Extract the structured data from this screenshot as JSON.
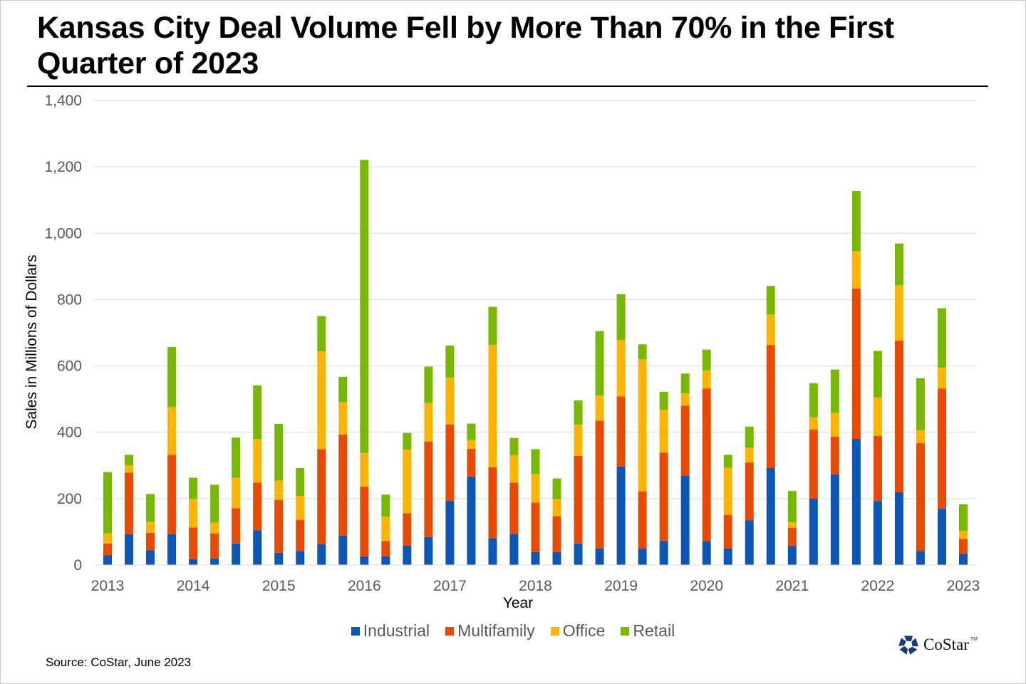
{
  "chart_data": {
    "type": "bar",
    "stacked": true,
    "title": "Kansas City Deal Volume Fell by More Than 70% in the First Quarter of 2023",
    "xlabel": "Year",
    "ylabel": "Sales in Millions of Dollars",
    "ylim": [
      0,
      1400
    ],
    "yticks": [
      0,
      200,
      400,
      600,
      800,
      1000,
      1200,
      1400
    ],
    "ytick_labels": [
      "0",
      "200",
      "400",
      "600",
      "800",
      "1,000",
      "1,200",
      "1,400"
    ],
    "grid": true,
    "legend_position": "bottom",
    "x_tick_labels": [
      {
        "index": 0,
        "label": "2013"
      },
      {
        "index": 4,
        "label": "2014"
      },
      {
        "index": 8,
        "label": "2015"
      },
      {
        "index": 12,
        "label": "2016"
      },
      {
        "index": 16,
        "label": "2017"
      },
      {
        "index": 20,
        "label": "2018"
      },
      {
        "index": 24,
        "label": "2019"
      },
      {
        "index": 28,
        "label": "2020"
      },
      {
        "index": 32,
        "label": "2021"
      },
      {
        "index": 36,
        "label": "2022"
      },
      {
        "index": 40,
        "label": "2023"
      }
    ],
    "categories": [
      "2013 Q1",
      "2013 Q2",
      "2013 Q3",
      "2013 Q4",
      "2014 Q1",
      "2014 Q2",
      "2014 Q3",
      "2014 Q4",
      "2015 Q1",
      "2015 Q2",
      "2015 Q3",
      "2015 Q4",
      "2016 Q1",
      "2016 Q2",
      "2016 Q3",
      "2016 Q4",
      "2017 Q1",
      "2017 Q2",
      "2017 Q3",
      "2017 Q4",
      "2018 Q1",
      "2018 Q2",
      "2018 Q3",
      "2018 Q4",
      "2019 Q1",
      "2019 Q2",
      "2019 Q3",
      "2019 Q4",
      "2020 Q1",
      "2020 Q2",
      "2020 Q3",
      "2020 Q4",
      "2021 Q1",
      "2021 Q2",
      "2021 Q3",
      "2021 Q4",
      "2022 Q1",
      "2022 Q2",
      "2022 Q3",
      "2022 Q4",
      "2023 Q1"
    ],
    "series": [
      {
        "name": "Industrial",
        "color": "#0b57b8",
        "values": [
          29,
          93,
          44,
          93,
          18,
          20,
          65,
          104,
          37,
          42,
          63,
          88,
          26,
          26,
          58,
          84,
          193,
          266,
          81,
          94,
          39,
          39,
          65,
          50,
          297,
          50,
          72,
          270,
          72,
          50,
          135,
          292,
          57,
          200,
          273,
          380,
          193,
          219,
          42,
          170,
          34
        ]
      },
      {
        "name": "Multifamily",
        "color": "#ea4a00",
        "values": [
          36,
          185,
          53,
          239,
          95,
          75,
          106,
          144,
          159,
          94,
          286,
          305,
          210,
          46,
          98,
          288,
          230,
          84,
          214,
          154,
          149,
          108,
          264,
          385,
          211,
          172,
          267,
          210,
          460,
          101,
          174,
          371,
          55,
          208,
          114,
          453,
          196,
          457,
          326,
          362,
          45
        ]
      },
      {
        "name": "Office",
        "color": "#ffb400",
        "values": [
          30,
          22,
          33,
          144,
          86,
          33,
          92,
          132,
          58,
          72,
          295,
          97,
          102,
          74,
          192,
          116,
          142,
          26,
          368,
          83,
          86,
          52,
          94,
          76,
          170,
          398,
          129,
          37,
          54,
          142,
          45,
          92,
          17,
          37,
          71,
          113,
          116,
          167,
          38,
          63,
          24
        ]
      },
      {
        "name": "Retail",
        "color": "#77b800",
        "values": [
          185,
          32,
          84,
          181,
          64,
          114,
          121,
          161,
          171,
          84,
          106,
          77,
          883,
          66,
          50,
          110,
          96,
          50,
          115,
          52,
          75,
          62,
          73,
          194,
          138,
          45,
          54,
          60,
          63,
          39,
          63,
          86,
          94,
          103,
          131,
          181,
          140,
          126,
          157,
          179,
          80
        ]
      }
    ]
  },
  "legend": {
    "items": [
      {
        "label": "Industrial",
        "color": "#0b57b8"
      },
      {
        "label": "Multifamily",
        "color": "#ea4a00"
      },
      {
        "label": "Office",
        "color": "#ffb400"
      },
      {
        "label": "Retail",
        "color": "#77b800"
      }
    ]
  },
  "footer": {
    "source": "Source: CoStar, June 2023",
    "logo_text": "CoStar",
    "logo_tm": "TM",
    "logo_color": "#1d3a78"
  }
}
